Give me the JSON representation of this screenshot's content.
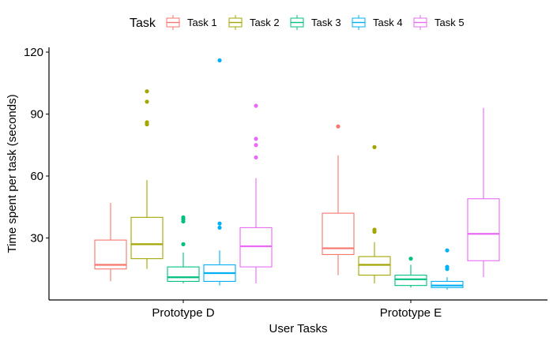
{
  "chart_data": {
    "type": "boxplot",
    "xlabel": "User Tasks",
    "ylabel": "Time spent per task (seconds)",
    "ylim": [
      0,
      122
    ],
    "yticks": [
      30,
      60,
      90,
      120
    ],
    "grid": false,
    "legend": {
      "title": "Task",
      "position": "top"
    },
    "categories": [
      "Prototype D",
      "Prototype E"
    ],
    "series": [
      {
        "name": "Task 1",
        "color": "#F8766D",
        "boxes": [
          {
            "min": 9,
            "q1": 15,
            "median": 17,
            "q3": 29,
            "max": 47,
            "outliers": []
          },
          {
            "min": 12,
            "q1": 22,
            "median": 25,
            "q3": 42,
            "max": 70,
            "outliers": [
              84
            ]
          }
        ]
      },
      {
        "name": "Task 2",
        "color": "#A3A500",
        "boxes": [
          {
            "min": 15,
            "q1": 20,
            "median": 27,
            "q3": 40,
            "max": 58,
            "outliers": [
              85,
              86,
              96,
              101
            ]
          },
          {
            "min": 8,
            "q1": 12,
            "median": 17,
            "q3": 21,
            "max": 28,
            "outliers": [
              33,
              34,
              74
            ]
          }
        ]
      },
      {
        "name": "Task 3",
        "color": "#00BF7D",
        "boxes": [
          {
            "min": 8,
            "q1": 9,
            "median": 11,
            "q3": 16,
            "max": 23,
            "outliers": [
              27,
              38,
              39,
              40
            ]
          },
          {
            "min": 6,
            "q1": 7,
            "median": 10,
            "q3": 12,
            "max": 17,
            "outliers": [
              20
            ]
          }
        ]
      },
      {
        "name": "Task 4",
        "color": "#00B0F6",
        "boxes": [
          {
            "min": 7,
            "q1": 9,
            "median": 13,
            "q3": 17,
            "max": 24,
            "outliers": [
              35,
              37,
              116
            ]
          },
          {
            "min": 5,
            "q1": 6,
            "median": 7,
            "q3": 9,
            "max": 11,
            "outliers": [
              15,
              16,
              24
            ]
          }
        ]
      },
      {
        "name": "Task 5",
        "color": "#E76BF3",
        "boxes": [
          {
            "min": 8,
            "q1": 16,
            "median": 26,
            "q3": 35,
            "max": 59,
            "outliers": [
              69,
              75,
              78,
              94
            ]
          },
          {
            "min": 11,
            "q1": 19,
            "median": 32,
            "q3": 49,
            "max": 93,
            "outliers": []
          }
        ]
      }
    ]
  }
}
